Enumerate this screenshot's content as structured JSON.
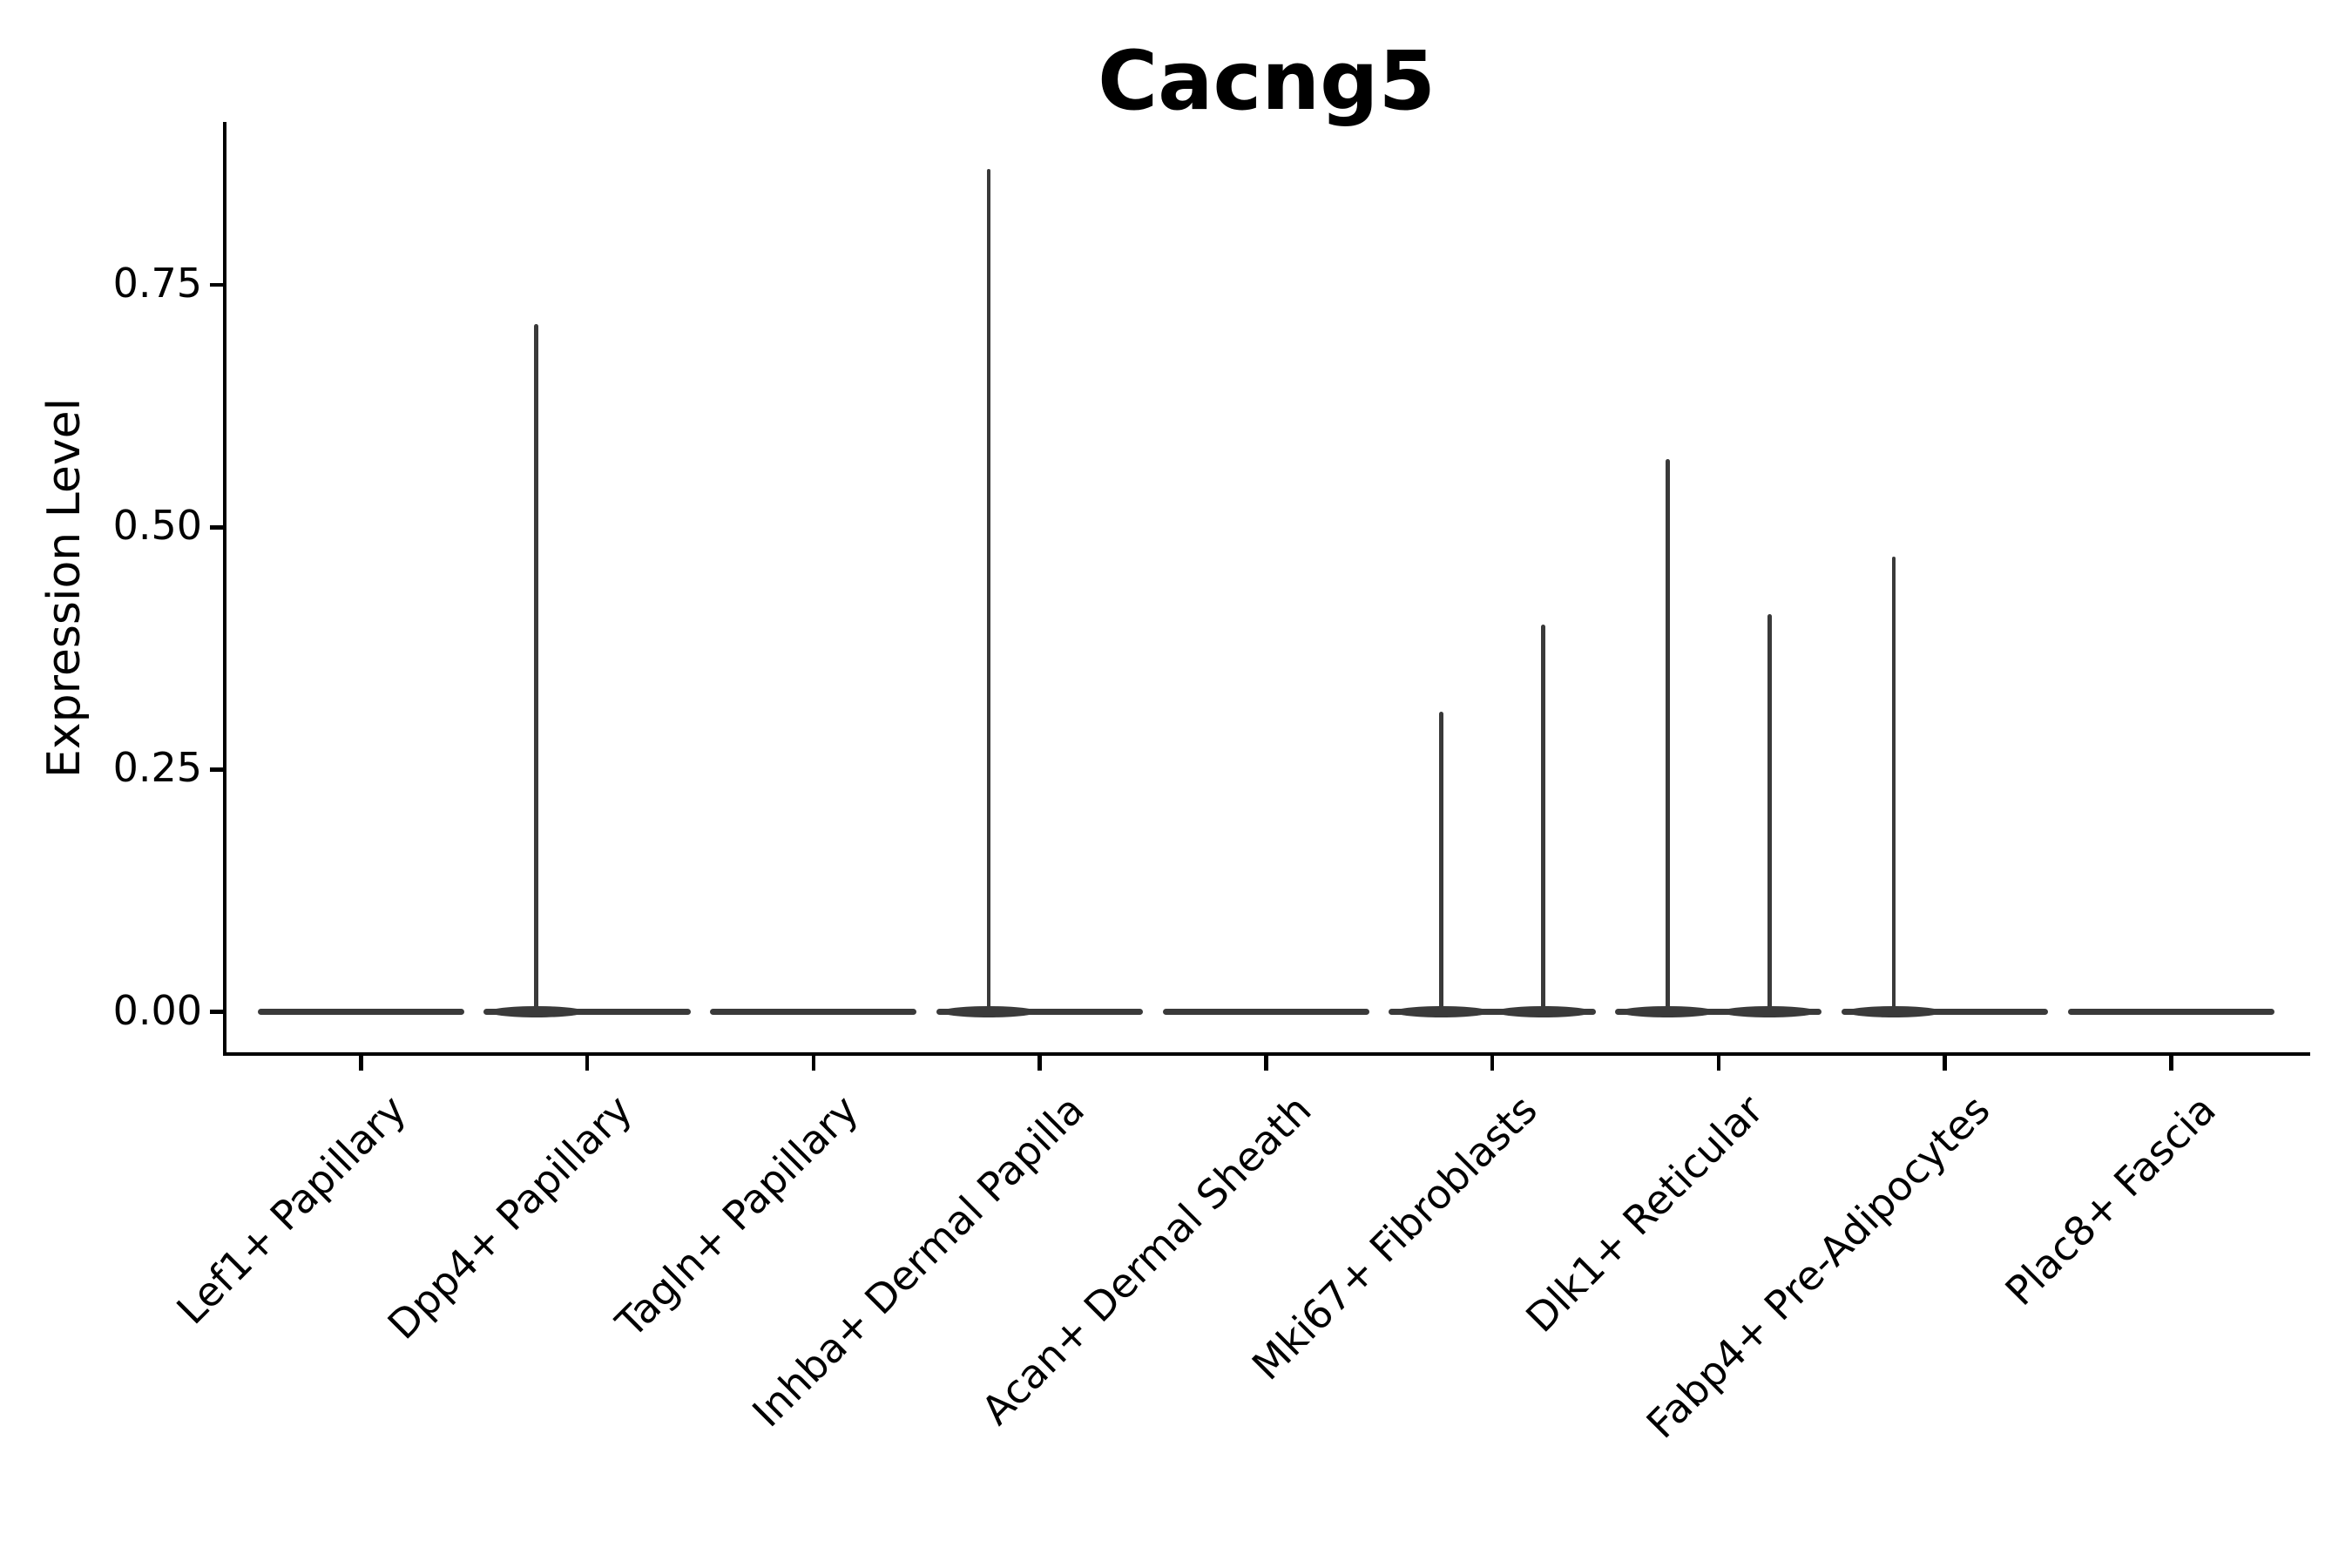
{
  "chart_data": {
    "type": "violin",
    "title": "Cacng5",
    "xlabel": "",
    "ylabel": "Expression Level",
    "legend_position": "none",
    "grid": false,
    "background_color": "#ffffff",
    "axis_color": "#000000",
    "violin_color": "#3a3a3a",
    "ylim": [
      -0.04,
      0.92
    ],
    "ytick_values": [
      0.0,
      0.25,
      0.5,
      0.75
    ],
    "ytick_labels": [
      "0.00",
      "0.25",
      "0.50",
      "0.75"
    ],
    "categories": [
      "Lef1+ Papillary",
      "Dpp4+ Papillary",
      "Tagln+ Papillary",
      "Inhba+ Dermal Papilla",
      "Acan+ Dermal Sheath",
      "Mki67+ Fibroblasts",
      "Dlk1+ Reticular",
      "Fabp4+ Pre-Adipocytes",
      "Plac8+ Fascia"
    ],
    "series": [
      {
        "name": "left-violin",
        "description": "left half of each violin pair; bulk of distribution at 0, value is max expression spike",
        "max_values": [
          0,
          0.71,
          0,
          0.87,
          0,
          0.31,
          0.57,
          0.47,
          0
        ]
      },
      {
        "name": "right-violin",
        "description": "right half of each violin pair; bulk of distribution at 0, value is max expression spike",
        "max_values": [
          0,
          0,
          0,
          0,
          0,
          0.4,
          0.41,
          0,
          0
        ]
      }
    ]
  }
}
